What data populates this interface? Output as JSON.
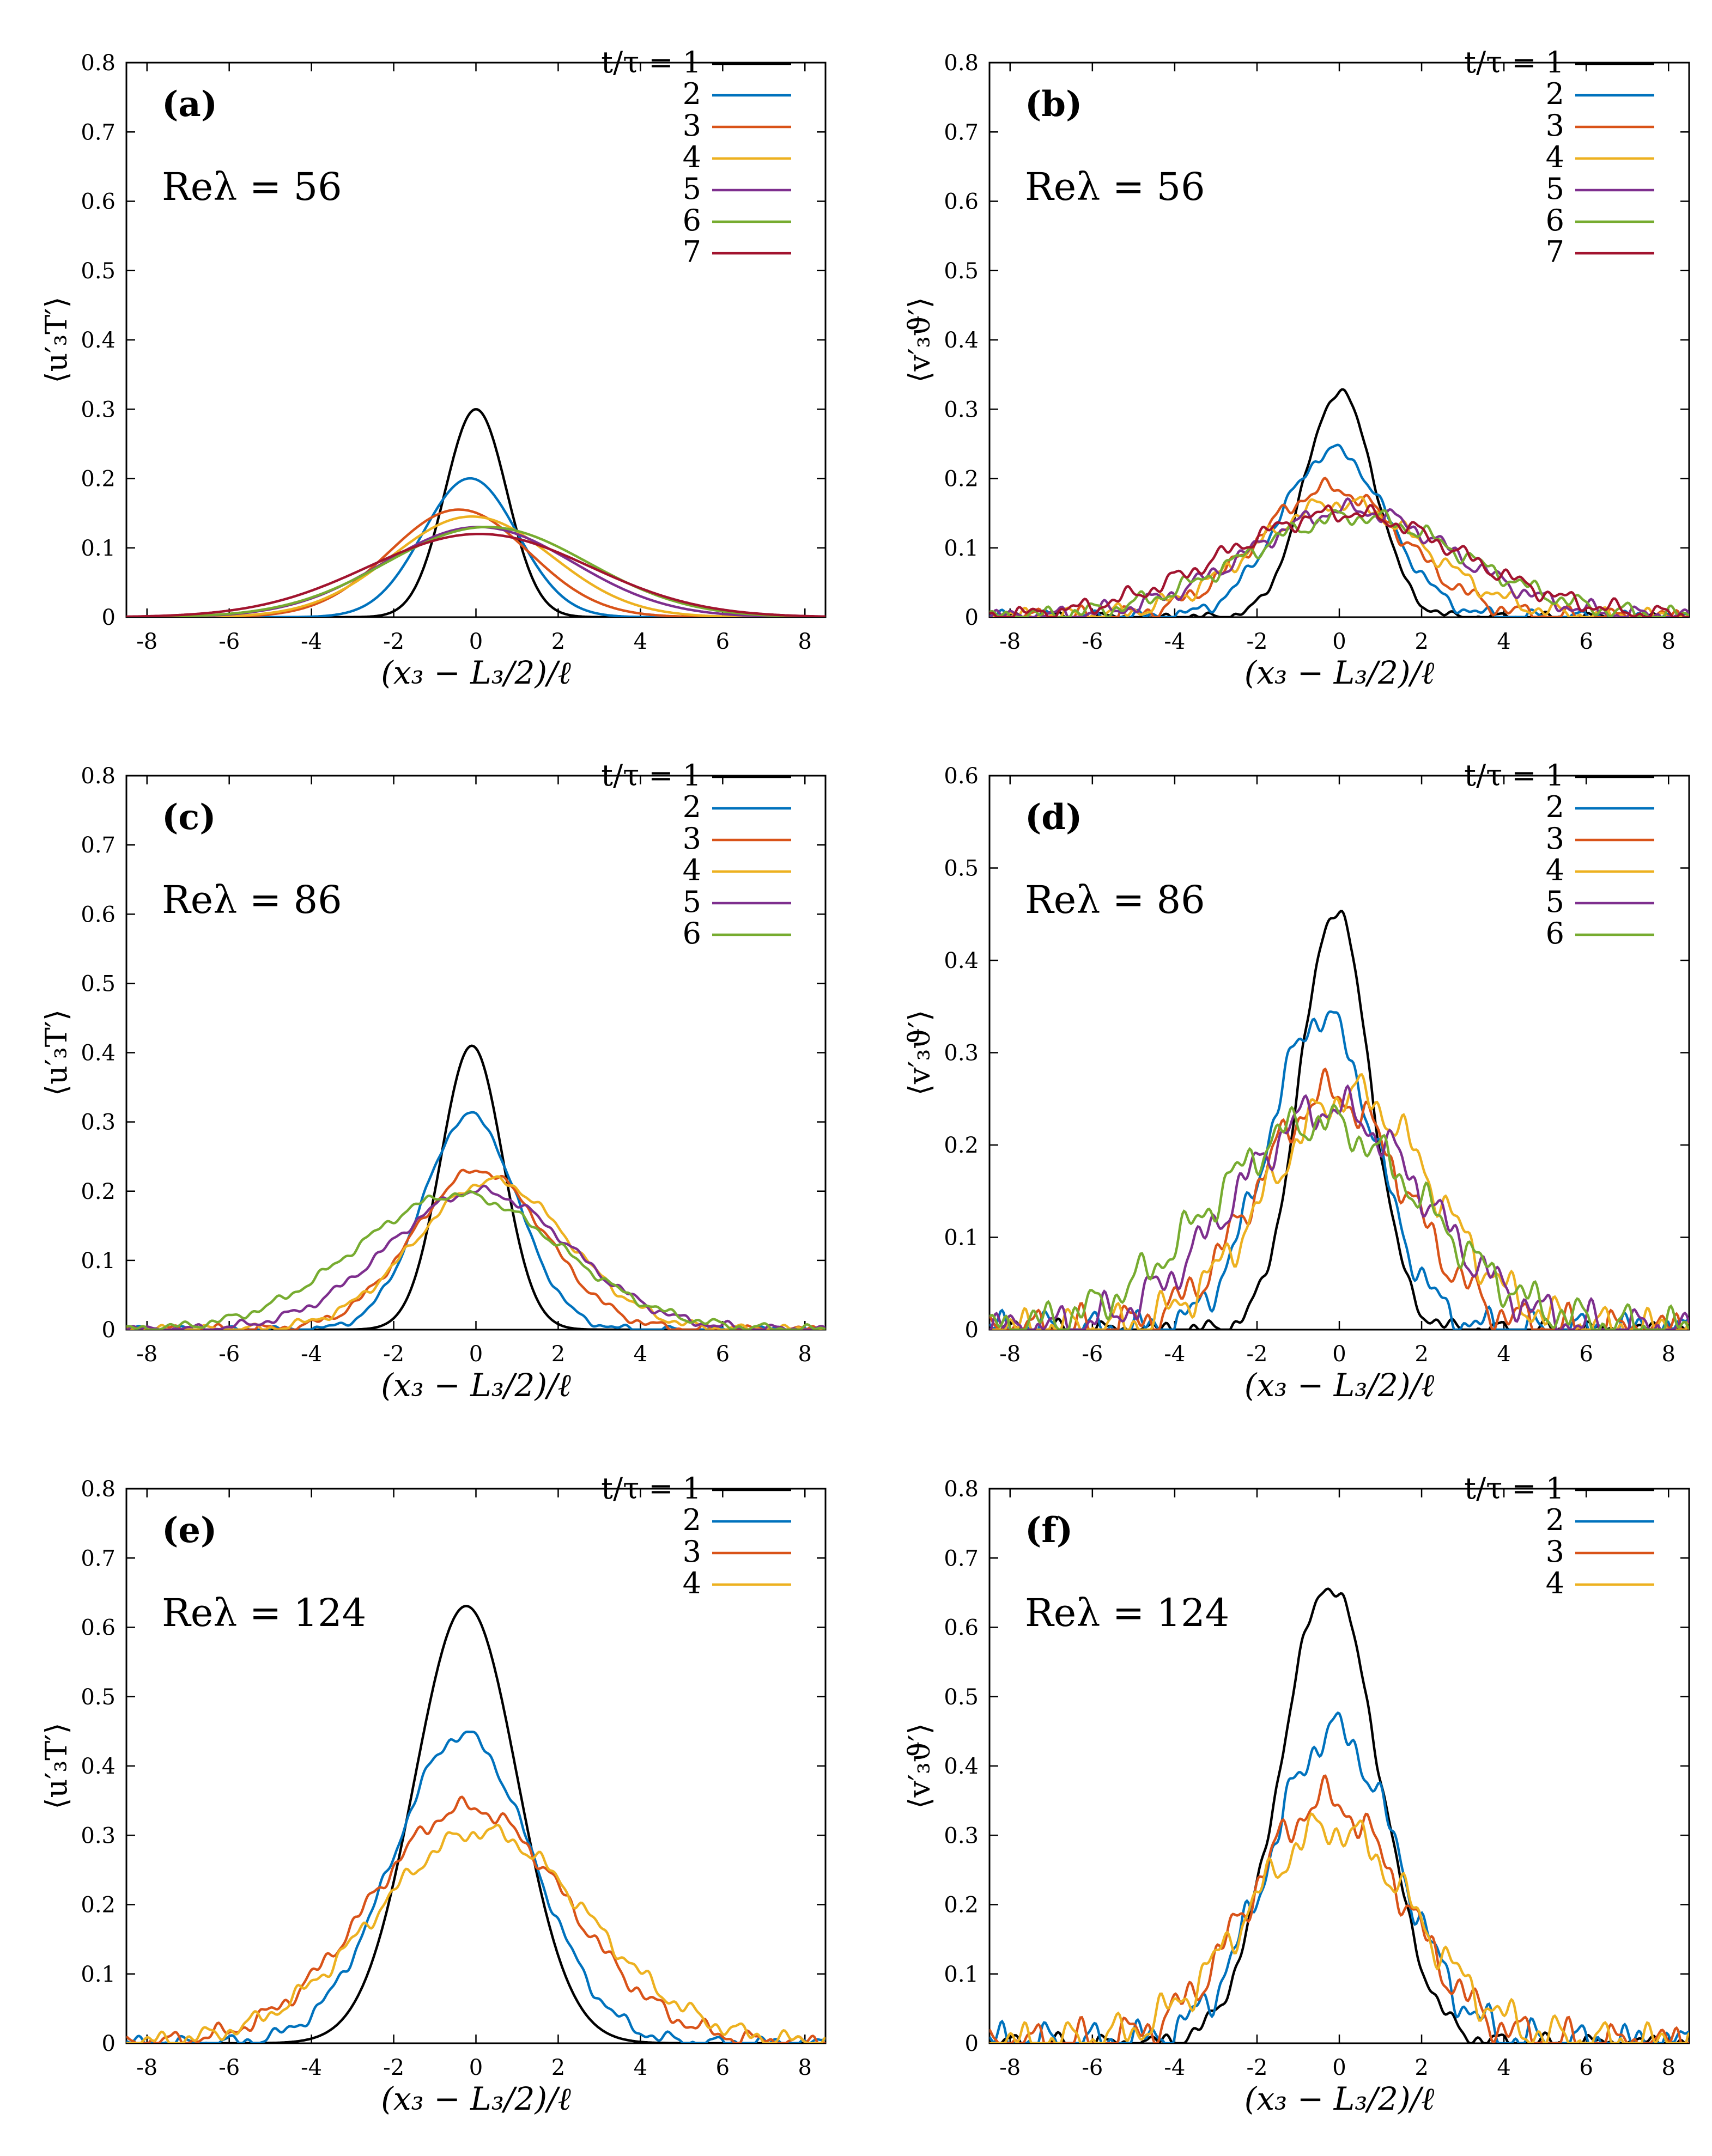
{
  "figure": {
    "x_label": "(x₃ − L₃/2)/ℓ",
    "legend_title": "t/τ = 1",
    "colors": [
      "#000000",
      "#0072BD",
      "#D95319",
      "#EDB120",
      "#7E2F8E",
      "#77AC30",
      "#A2142F"
    ]
  },
  "chart_data": [
    {
      "type": "line",
      "id": "a",
      "tag": "(a)",
      "re_label": "Reλ = 56",
      "ylabel": "⟨u′₃T′⟩",
      "xlabel": "(x₃ − L₃/2)/ℓ",
      "xlim": [
        -8.5,
        8.5
      ],
      "ylim": [
        0,
        0.8
      ],
      "xticks": [
        -8,
        -6,
        -4,
        -2,
        0,
        2,
        4,
        6,
        8
      ],
      "yticks": [
        0,
        0.1,
        0.2,
        0.3,
        0.4,
        0.5,
        0.6,
        0.7,
        0.8
      ],
      "series": [
        {
          "name": "t/τ = 1",
          "label": "t/τ = 1",
          "peak": 0.3,
          "center": 0.0,
          "width": 0.75,
          "skew": 0.0,
          "noise": 0
        },
        {
          "name": "2",
          "label": "2",
          "peak": 0.2,
          "center": -0.2,
          "width": 1.15,
          "skew": 0.05,
          "noise": 0
        },
        {
          "name": "3",
          "label": "3",
          "peak": 0.155,
          "center": -0.5,
          "width": 1.7,
          "skew": 0.05,
          "noise": 0
        },
        {
          "name": "4",
          "label": "4",
          "peak": 0.145,
          "center": -0.2,
          "width": 1.95,
          "skew": 0.05,
          "noise": 0
        },
        {
          "name": "5",
          "label": "5",
          "peak": 0.13,
          "center": 0.0,
          "width": 2.3,
          "skew": 0.03,
          "noise": 0
        },
        {
          "name": "6",
          "label": "6",
          "peak": 0.13,
          "center": 0.2,
          "width": 2.45,
          "skew": 0.03,
          "noise": 0
        },
        {
          "name": "7",
          "label": "7",
          "peak": 0.12,
          "center": 0.0,
          "width": 2.7,
          "skew": 0.03,
          "noise": 0
        }
      ]
    },
    {
      "type": "line",
      "id": "b",
      "tag": "(b)",
      "re_label": "Reλ = 56",
      "ylabel": "⟨v′₃ϑ′⟩",
      "xlabel": "(x₃ − L₃/2)/ℓ",
      "xlim": [
        -8.5,
        8.5
      ],
      "ylim": [
        0,
        0.8
      ],
      "xticks": [
        -8,
        -6,
        -4,
        -2,
        0,
        2,
        4,
        6,
        8
      ],
      "yticks": [
        0,
        0.1,
        0.2,
        0.3,
        0.4,
        0.5,
        0.6,
        0.7,
        0.8
      ],
      "series": [
        {
          "name": "t/τ = 1",
          "label": "t/τ = 1",
          "peak": 0.325,
          "center": 0.0,
          "width": 0.85,
          "skew": 0.0,
          "noise": 0.004
        },
        {
          "name": "2",
          "label": "2",
          "peak": 0.24,
          "center": -0.2,
          "width": 1.3,
          "skew": 0.05,
          "noise": 0.006
        },
        {
          "name": "3",
          "label": "3",
          "peak": 0.185,
          "center": -0.3,
          "width": 1.8,
          "skew": 0.05,
          "noise": 0.008
        },
        {
          "name": "4",
          "label": "4",
          "peak": 0.165,
          "center": -0.1,
          "width": 2.1,
          "skew": 0.05,
          "noise": 0.008
        },
        {
          "name": "5",
          "label": "5",
          "peak": 0.155,
          "center": 0.2,
          "width": 2.5,
          "skew": 0.03,
          "noise": 0.008
        },
        {
          "name": "6",
          "label": "6",
          "peak": 0.145,
          "center": 0.3,
          "width": 2.7,
          "skew": 0.03,
          "noise": 0.008
        },
        {
          "name": "7",
          "label": "7",
          "peak": 0.15,
          "center": 0.0,
          "width": 2.9,
          "skew": 0.03,
          "noise": 0.008
        }
      ]
    },
    {
      "type": "line",
      "id": "c",
      "tag": "(c)",
      "re_label": "Reλ = 86",
      "ylabel": "⟨u′₃T′⟩",
      "xlabel": "(x₃ − L₃/2)/ℓ",
      "xlim": [
        -8.5,
        8.5
      ],
      "ylim": [
        0,
        0.8
      ],
      "xticks": [
        -8,
        -6,
        -4,
        -2,
        0,
        2,
        4,
        6,
        8
      ],
      "yticks": [
        0,
        0.1,
        0.2,
        0.3,
        0.4,
        0.5,
        0.6,
        0.7,
        0.8
      ],
      "series": [
        {
          "name": "t/τ = 1",
          "label": "t/τ = 1",
          "peak": 0.41,
          "center": -0.1,
          "width": 0.75,
          "skew": 0.0,
          "noise": 0
        },
        {
          "name": "2",
          "label": "2",
          "peak": 0.31,
          "center": -0.2,
          "width": 1.15,
          "skew": 0.05,
          "noise": 0.003
        },
        {
          "name": "3",
          "label": "3",
          "peak": 0.23,
          "center": 0.0,
          "width": 1.6,
          "skew": 0.05,
          "noise": 0.004
        },
        {
          "name": "4",
          "label": "4",
          "peak": 0.215,
          "center": 0.3,
          "width": 1.85,
          "skew": 0.05,
          "noise": 0.004
        },
        {
          "name": "5",
          "label": "5",
          "peak": 0.2,
          "center": 0.0,
          "width": 2.2,
          "skew": 0.03,
          "noise": 0.004
        },
        {
          "name": "6",
          "label": "6",
          "peak": 0.195,
          "center": -0.5,
          "width": 2.5,
          "skew": 0.03,
          "noise": 0.004
        }
      ]
    },
    {
      "type": "line",
      "id": "d",
      "tag": "(d)",
      "re_label": "Reλ = 86",
      "ylabel": "⟨v′₃ϑ′⟩",
      "xlabel": "(x₃ − L₃/2)/ℓ",
      "xlim": [
        -8.5,
        8.5
      ],
      "ylim": [
        0,
        0.6
      ],
      "xticks": [
        -8,
        -6,
        -4,
        -2,
        0,
        2,
        4,
        6,
        8
      ],
      "yticks": [
        0,
        0.1,
        0.2,
        0.3,
        0.4,
        0.5,
        0.6
      ],
      "series": [
        {
          "name": "t/τ = 1",
          "label": "t/τ = 1",
          "peak": 0.455,
          "center": -0.1,
          "width": 0.85,
          "skew": 0.0,
          "noise": 0.006
        },
        {
          "name": "2",
          "label": "2",
          "peak": 0.34,
          "center": -0.5,
          "width": 1.3,
          "skew": 0.05,
          "noise": 0.012
        },
        {
          "name": "3",
          "label": "3",
          "peak": 0.255,
          "center": -0.3,
          "width": 1.8,
          "skew": 0.05,
          "noise": 0.014
        },
        {
          "name": "4",
          "label": "4",
          "peak": 0.255,
          "center": 0.2,
          "width": 2.0,
          "skew": 0.05,
          "noise": 0.014
        },
        {
          "name": "5",
          "label": "5",
          "peak": 0.24,
          "center": -0.3,
          "width": 2.3,
          "skew": 0.03,
          "noise": 0.014
        },
        {
          "name": "6",
          "label": "6",
          "peak": 0.225,
          "center": -0.6,
          "width": 2.6,
          "skew": 0.03,
          "noise": 0.014
        }
      ]
    },
    {
      "type": "line",
      "id": "e",
      "tag": "(e)",
      "re_label": "Reλ = 124",
      "ylabel": "⟨u′₃T′⟩",
      "xlabel": "(x₃ − L₃/2)/ℓ",
      "xlim": [
        -8.5,
        8.5
      ],
      "ylim": [
        0,
        0.8
      ],
      "xticks": [
        -8,
        -6,
        -4,
        -2,
        0,
        2,
        4,
        6,
        8
      ],
      "yticks": [
        0,
        0.1,
        0.2,
        0.3,
        0.4,
        0.5,
        0.6,
        0.7,
        0.8
      ],
      "series": [
        {
          "name": "t/τ = 1",
          "label": "t/τ = 1",
          "peak": 0.63,
          "center": -0.3,
          "width": 1.25,
          "skew": 0.05,
          "noise": 0
        },
        {
          "name": "2",
          "label": "2",
          "peak": 0.445,
          "center": -0.4,
          "width": 1.7,
          "skew": 0.05,
          "noise": 0.006
        },
        {
          "name": "3",
          "label": "3",
          "peak": 0.34,
          "center": -0.3,
          "width": 2.4,
          "skew": 0.05,
          "noise": 0.008
        },
        {
          "name": "4",
          "label": "4",
          "peak": 0.305,
          "center": 0.0,
          "width": 2.6,
          "skew": 0.05,
          "noise": 0.008
        }
      ]
    },
    {
      "type": "line",
      "id": "f",
      "tag": "(f)",
      "re_label": "Reλ = 124",
      "ylabel": "⟨v′₃ϑ′⟩",
      "xlabel": "(x₃ − L₃/2)/ℓ",
      "xlim": [
        -8.5,
        8.5
      ],
      "ylim": [
        0,
        0.8
      ],
      "xticks": [
        -8,
        -6,
        -4,
        -2,
        0,
        2,
        4,
        6,
        8
      ],
      "yticks": [
        0,
        0.1,
        0.2,
        0.3,
        0.4,
        0.5,
        0.6,
        0.7,
        0.8
      ],
      "series": [
        {
          "name": "t/τ = 1",
          "label": "t/τ = 1",
          "peak": 0.66,
          "center": -0.3,
          "width": 1.2,
          "skew": 0.05,
          "noise": 0.008
        },
        {
          "name": "2",
          "label": "2",
          "peak": 0.45,
          "center": -0.2,
          "width": 1.55,
          "skew": 0.05,
          "noise": 0.018
        },
        {
          "name": "3",
          "label": "3",
          "peak": 0.35,
          "center": -0.4,
          "width": 1.85,
          "skew": 0.05,
          "noise": 0.018
        },
        {
          "name": "4",
          "label": "4",
          "peak": 0.31,
          "center": -0.3,
          "width": 2.05,
          "skew": 0.05,
          "noise": 0.018
        }
      ]
    }
  ]
}
